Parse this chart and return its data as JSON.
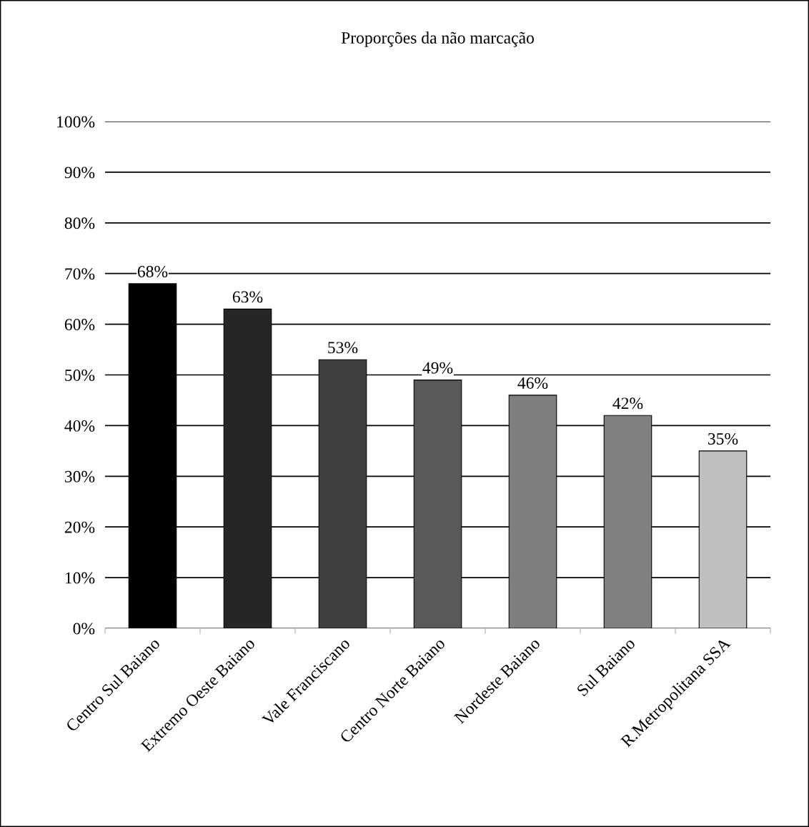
{
  "chart_data": {
    "type": "bar",
    "title": "Proporções da não marcação",
    "categories": [
      "Centro Sul Baiano",
      "Extremo Oeste Baiano",
      "Vale Franciscano",
      "Centro Norte Baiano",
      "Nordeste Baiano",
      "Sul Baiano",
      "R.Metropolitana SSA"
    ],
    "values": [
      68,
      63,
      53,
      49,
      46,
      42,
      35
    ],
    "colors": [
      "#000000",
      "#262626",
      "#404040",
      "#595959",
      "#7f7f7f",
      "#808080",
      "#bfbfbf"
    ],
    "value_labels": [
      "68%",
      "63%",
      "53%",
      "49%",
      "46%",
      "42%",
      "35%"
    ],
    "ylim": [
      0,
      100
    ],
    "yticks": [
      {
        "value": 0,
        "label": "0%"
      },
      {
        "value": 10,
        "label": "10%"
      },
      {
        "value": 20,
        "label": "20%"
      },
      {
        "value": 30,
        "label": "30%"
      },
      {
        "value": 40,
        "label": "40%"
      },
      {
        "value": 50,
        "label": "50%"
      },
      {
        "value": 60,
        "label": "60%"
      },
      {
        "value": 70,
        "label": "70%"
      },
      {
        "value": 80,
        "label": "80%"
      },
      {
        "value": 90,
        "label": "90%"
      },
      {
        "value": 100,
        "label": "100%"
      }
    ],
    "grid": "y",
    "legend": false
  }
}
